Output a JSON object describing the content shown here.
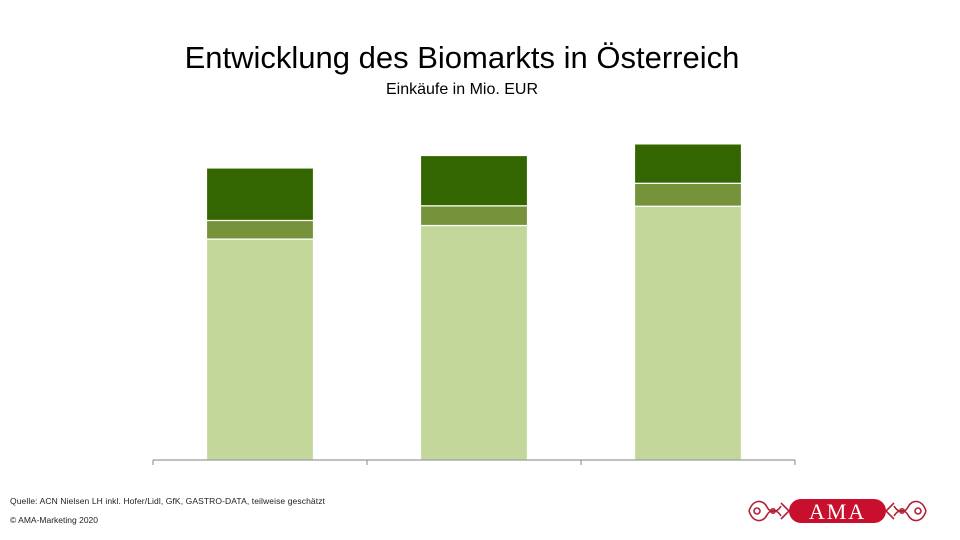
{
  "title": "Entwicklung des Biomarkts in Österreich",
  "subtitle": "Einkäufe in Mio. EUR",
  "footer": {
    "source": "Quelle: ACN Nielsen LH inkl. Hofer/Lidl, GfK, GASTRO-DATA, teilweise geschätzt",
    "copyright": "© AMA-Marketing 2020"
  },
  "logo": {
    "text": "AMA",
    "color": "#c8102e",
    "ornament_color": "#b22234"
  },
  "colors": {
    "segment_bottom": "#c4d79b",
    "segment_middle": "#76933c",
    "segment_top": "#336600",
    "axis": "#9a9a9a"
  },
  "chart_data": {
    "type": "bar",
    "stacked": true,
    "categories": [
      "",
      "",
      ""
    ],
    "series": [
      {
        "values": [
          1010,
          1072,
          1160
        ]
      },
      {
        "values": [
          85,
          90,
          105
        ]
      },
      {
        "values": [
          240,
          230,
          180
        ]
      }
    ],
    "ylim": [
      0,
      1600
    ],
    "grid": false,
    "legend": "none"
  }
}
